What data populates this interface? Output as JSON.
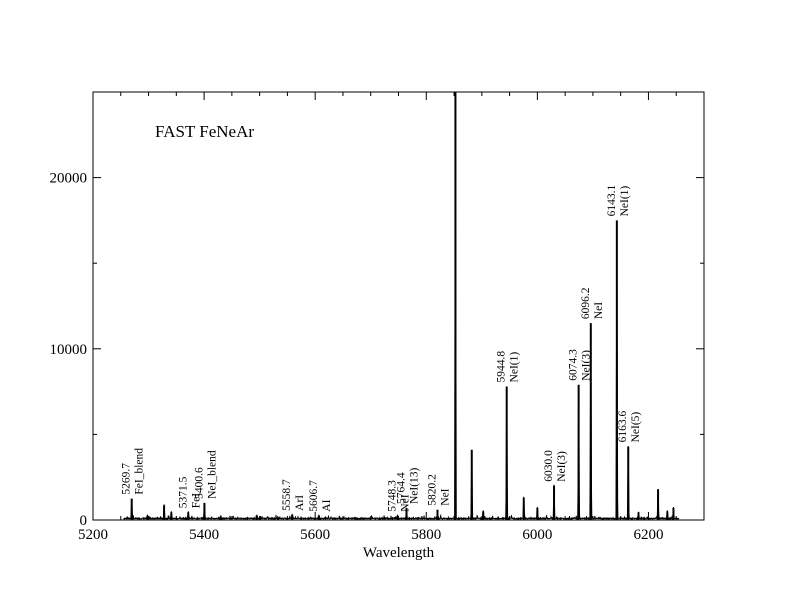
{
  "chart_data": {
    "type": "line",
    "title": "FAST FeNeAr",
    "xlabel": "Wavelength",
    "ylabel": "",
    "xlim": [
      5200,
      6300
    ],
    "ylim": [
      0,
      25000
    ],
    "x_ticks": [
      5200,
      5400,
      5600,
      5800,
      6000,
      6200
    ],
    "y_ticks": [
      0,
      10000,
      20000
    ],
    "grid": false,
    "legend": "none",
    "line_color": "#000000",
    "spectrum": {
      "x_range": [
        5255,
        6255
      ],
      "baseline": 60,
      "lines": [
        {
          "x": 5269.7,
          "y": 1250
        },
        {
          "x": 5298,
          "y": 250
        },
        {
          "x": 5328,
          "y": 850
        },
        {
          "x": 5341,
          "y": 450
        },
        {
          "x": 5371.5,
          "y": 450
        },
        {
          "x": 5400.6,
          "y": 1000
        },
        {
          "x": 5430,
          "y": 200
        },
        {
          "x": 5495,
          "y": 250
        },
        {
          "x": 5558.7,
          "y": 300
        },
        {
          "x": 5606.7,
          "y": 250
        },
        {
          "x": 5748.3,
          "y": 250
        },
        {
          "x": 5764.4,
          "y": 700
        },
        {
          "x": 5820.2,
          "y": 600
        },
        {
          "x": 5852.5,
          "y": 25000
        },
        {
          "x": 5881.9,
          "y": 4100
        },
        {
          "x": 5902.5,
          "y": 500
        },
        {
          "x": 5944.8,
          "y": 7800
        },
        {
          "x": 5975.5,
          "y": 1300
        },
        {
          "x": 6000.0,
          "y": 700
        },
        {
          "x": 6030.0,
          "y": 2000
        },
        {
          "x": 6074.3,
          "y": 7900
        },
        {
          "x": 6096.2,
          "y": 11500
        },
        {
          "x": 6143.1,
          "y": 17500
        },
        {
          "x": 6163.6,
          "y": 4300
        },
        {
          "x": 6182.1,
          "y": 450
        },
        {
          "x": 6217.3,
          "y": 1800
        },
        {
          "x": 6234,
          "y": 500
        },
        {
          "x": 6245,
          "y": 700
        }
      ]
    },
    "annotations": [
      {
        "x": 5269.7,
        "y": 1250,
        "lines": [
          "5269.7",
          "FeI_blend"
        ]
      },
      {
        "x": 5371.5,
        "y": 450,
        "lines": [
          "5371.5",
          "FeI"
        ]
      },
      {
        "x": 5400.6,
        "y": 1000,
        "lines": [
          "5400.6",
          "NeI_blend"
        ]
      },
      {
        "x": 5558.7,
        "y": 300,
        "lines": [
          "5558.7",
          "ArI"
        ]
      },
      {
        "x": 5606.7,
        "y": 250,
        "lines": [
          "5606.7",
          "AI"
        ]
      },
      {
        "x": 5748.3,
        "y": 250,
        "lines": [
          "5748.3",
          "NeI"
        ]
      },
      {
        "x": 5764.4,
        "y": 700,
        "lines": [
          "5764.4",
          "NeI(13)"
        ]
      },
      {
        "x": 5820.2,
        "y": 600,
        "lines": [
          "5820.2",
          "NeI"
        ]
      },
      {
        "x": 5944.8,
        "y": 7800,
        "lines": [
          "5944.8",
          "NeI(1)"
        ]
      },
      {
        "x": 6030.0,
        "y": 2000,
        "lines": [
          "6030.0",
          "NeI(3)"
        ]
      },
      {
        "x": 6074.3,
        "y": 7900,
        "lines": [
          "6074.3",
          "NeI(3)"
        ]
      },
      {
        "x": 6096.2,
        "y": 11500,
        "lines": [
          "6096.2",
          "NeI"
        ]
      },
      {
        "x": 6143.1,
        "y": 17500,
        "lines": [
          "6143.1",
          "NeI(1)"
        ]
      },
      {
        "x": 6163.6,
        "y": 4300,
        "lines": [
          "6163.6",
          "NeI(5)"
        ]
      }
    ]
  }
}
